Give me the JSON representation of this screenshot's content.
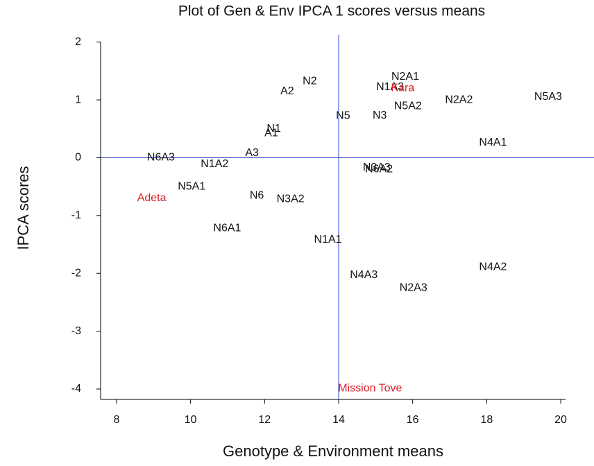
{
  "chart_data": {
    "type": "scatter",
    "title": "Plot of Gen & Env IPCA 1 scores versus means",
    "x_label": "Genotype & Environment means",
    "y_label": "IPCA scores",
    "labels": [
      "N6A3",
      "N1A2",
      "A3",
      "N1",
      "A1",
      "A2",
      "N2",
      "N5",
      "N3",
      "N2A1",
      "N1A3",
      "Kara",
      "N5A2",
      "N2A2",
      "N5A3",
      "N4A1",
      "N3A3",
      "N6A2",
      "Adeta",
      "N5A1",
      "N6",
      "N3A2",
      "N6A1",
      "N1A1",
      "N4A3",
      "N2A3",
      "N4A2",
      "Mission Tove"
    ],
    "x": [
      9.2,
      10.65,
      11.66,
      12.25,
      12.18,
      12.61,
      13.22,
      14.12,
      15.11,
      15.8,
      15.39,
      15.73,
      15.87,
      17.25,
      19.66,
      18.17,
      15.03,
      15.09,
      8.95,
      10.03,
      11.79,
      12.7,
      10.99,
      13.71,
      14.68,
      16.02,
      18.17,
      14.85
    ],
    "y": [
      0.0,
      -0.11,
      0.08,
      0.5,
      0.42,
      1.15,
      1.32,
      0.72,
      0.73,
      1.4,
      1.22,
      1.2,
      0.89,
      1.0,
      1.05,
      0.26,
      -0.17,
      -0.2,
      -0.7,
      -0.5,
      -0.66,
      -0.72,
      -1.22,
      -1.42,
      -2.03,
      -2.25,
      -1.89,
      -3.99
    ],
    "colors": [
      "#111",
      "#111",
      "#111",
      "#111",
      "#111",
      "#111",
      "#111",
      "#111",
      "#111",
      "#111",
      "#111",
      "#e0202a",
      "#111",
      "#111",
      "#111",
      "#111",
      "#111",
      "#111",
      "#e0202a",
      "#111",
      "#111",
      "#111",
      "#111",
      "#111",
      "#111",
      "#111",
      "#111",
      "#e0202a"
    ],
    "reference_lines": {
      "x": 14.0,
      "y": 0,
      "color": "#3344cc"
    },
    "xlim": [
      7.57,
      20.13
    ],
    "xticks": [
      8,
      10,
      12,
      14,
      16,
      18,
      20
    ],
    "ylim": [
      -4.18,
      2.2
    ],
    "yticks": [
      2,
      1,
      0,
      -1,
      -2,
      -3,
      -4
    ]
  }
}
